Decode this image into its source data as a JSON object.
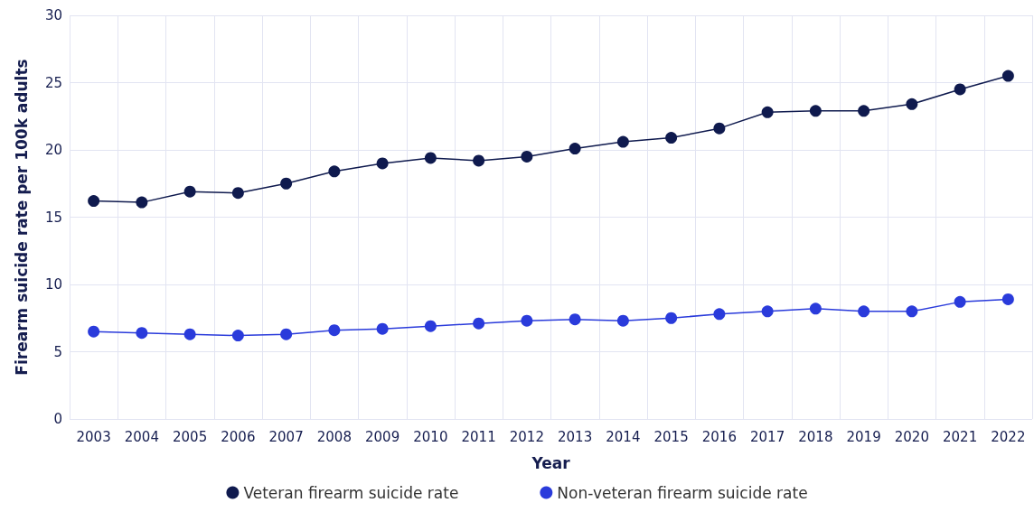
{
  "chart_data": {
    "type": "line",
    "xlabel": "Year",
    "ylabel": "Firearm suicide rate per 100k adults",
    "categories": [
      "2003",
      "2004",
      "2005",
      "2006",
      "2007",
      "2008",
      "2009",
      "2010",
      "2011",
      "2012",
      "2013",
      "2014",
      "2015",
      "2016",
      "2017",
      "2018",
      "2019",
      "2020",
      "2021",
      "2022"
    ],
    "series": [
      {
        "name": "Veteran firearm suicide rate",
        "color": "#0f1a4e",
        "values": [
          16.2,
          16.1,
          16.9,
          16.8,
          17.5,
          18.4,
          19.0,
          19.4,
          19.2,
          19.5,
          20.1,
          20.6,
          20.9,
          21.6,
          22.8,
          22.9,
          22.9,
          23.4,
          24.5,
          25.5
        ]
      },
      {
        "name": "Non-veteran firearm suicide rate",
        "color": "#2a3bdb",
        "values": [
          6.5,
          6.4,
          6.3,
          6.2,
          6.3,
          6.6,
          6.7,
          6.9,
          7.1,
          7.3,
          7.4,
          7.3,
          7.5,
          7.8,
          8.0,
          8.2,
          8.0,
          8.0,
          8.7,
          8.9
        ]
      }
    ],
    "ylim": [
      0,
      30
    ],
    "yticks": [
      0,
      5,
      10,
      15,
      20,
      25,
      30
    ],
    "grid": true,
    "legend": "bottom",
    "marker": "circle",
    "line_style": "solid"
  }
}
